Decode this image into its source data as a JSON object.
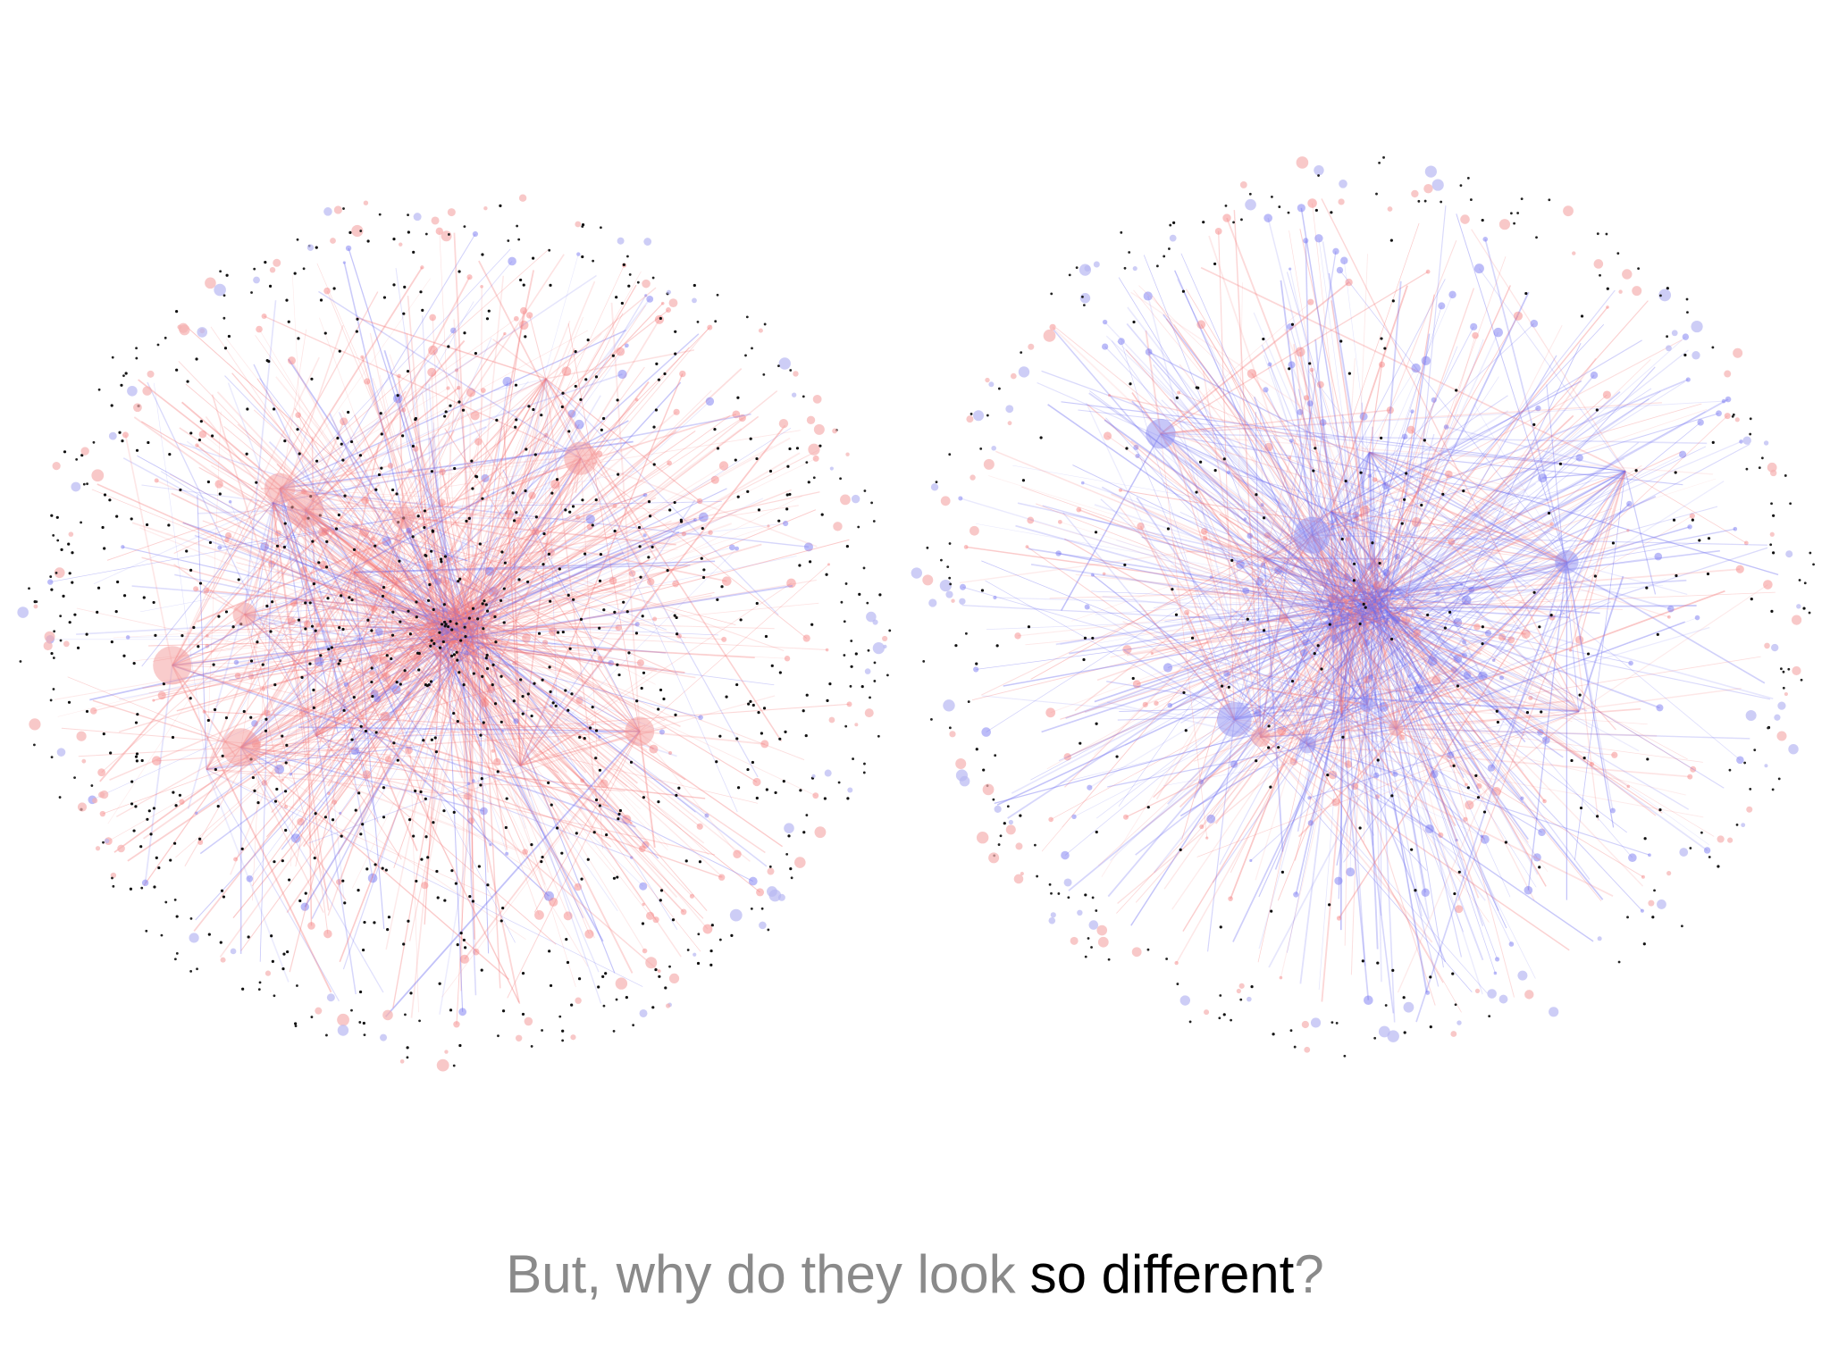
{
  "caption": {
    "lead": "But, why do they look",
    "emphasis": "so different",
    "end": "?"
  }
}
